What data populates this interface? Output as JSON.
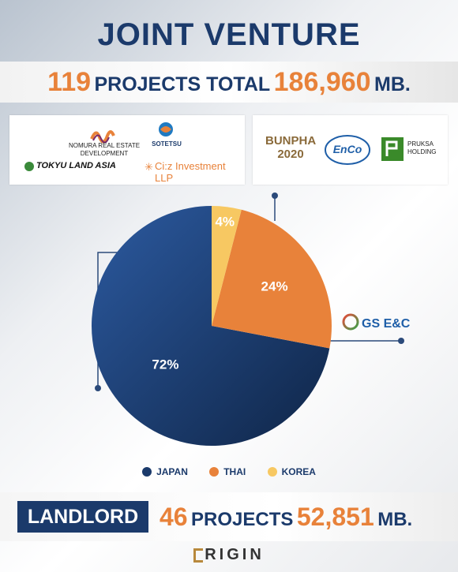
{
  "header": {
    "title": "JOINT VENTURE",
    "total_projects": "119",
    "projects_label": "PROJECTS TOTAL",
    "total_value": "186,960",
    "unit": "MB."
  },
  "partners": {
    "japan": [
      "NOMURA REAL ESTATE DEVELOPMENT",
      "SOTETSU",
      "TOKYU LAND ASIA",
      "Ci:z Investment LLP"
    ],
    "thai": [
      "BUNPHA 2020",
      "EnCo",
      "PRUKSA HOLDING"
    ],
    "korea": [
      "GS E&C"
    ]
  },
  "colors": {
    "navy": "#1b3a6b",
    "orange": "#e8823a",
    "yellow": "#f7c862"
  },
  "chart_data": {
    "type": "pie",
    "categories": [
      "JAPAN",
      "THAI",
      "KOREA"
    ],
    "values": [
      72,
      24,
      4
    ],
    "labels": [
      "72%",
      "24%",
      "4%"
    ],
    "colors": [
      "#1b3a6b",
      "#e8823a",
      "#f7c862"
    ],
    "legend_position": "bottom"
  },
  "landlord": {
    "badge": "LANDLORD",
    "projects": "46",
    "projects_label": "PROJECTS",
    "value": "52,851",
    "unit": "MB."
  },
  "brand": "RIGIN"
}
